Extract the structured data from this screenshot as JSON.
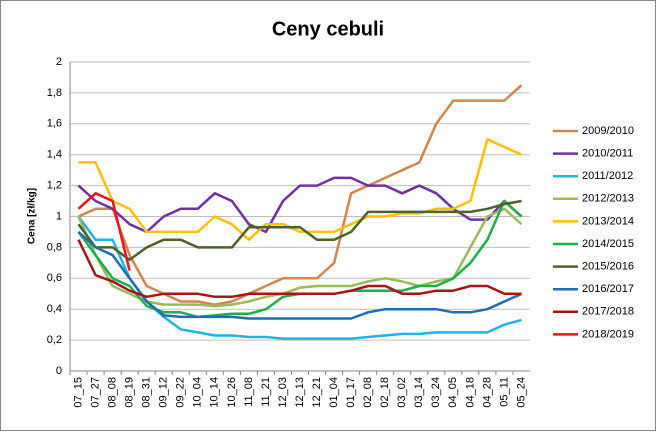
{
  "chart_data": {
    "type": "line",
    "title": "Ceny cebuli",
    "y_label": "Cena [zł/kg]",
    "categories": [
      "07_15",
      "07_27",
      "08_08",
      "08_19",
      "08_31",
      "09_12",
      "09_22",
      "10_04",
      "10_14",
      "10_26",
      "11_08",
      "11_21",
      "12_03",
      "12_13",
      "12_21",
      "01_04",
      "01_17",
      "02_08",
      "02_18",
      "03_02",
      "03_14",
      "03_24",
      "04_05",
      "04_18",
      "04_28",
      "05_11",
      "05_24"
    ],
    "ylim": [
      0,
      2
    ],
    "yticks": [
      0,
      {
        "value": 0.2,
        "label": "0,2"
      },
      {
        "value": 0.4,
        "label": "0,4"
      },
      {
        "value": 0.6,
        "label": "0,6"
      },
      {
        "value": 0.8,
        "label": "0,8"
      },
      1,
      {
        "value": 1.2,
        "label": "1,2"
      },
      {
        "value": 1.4,
        "label": "1,4"
      },
      {
        "value": 1.6,
        "label": "1,6"
      },
      {
        "value": 1.8,
        "label": "1,8"
      },
      2
    ],
    "grid": true,
    "legend": "right",
    "series": [
      {
        "name": "2009/2010",
        "color": "#d0874e",
        "values": [
          1.0,
          1.05,
          1.05,
          0.75,
          0.55,
          0.5,
          0.45,
          0.45,
          0.43,
          0.45,
          0.5,
          0.55,
          0.6,
          0.6,
          0.6,
          0.7,
          1.15,
          1.2,
          1.25,
          1.3,
          1.35,
          1.6,
          1.75,
          1.75,
          1.75,
          1.75,
          1.85
        ]
      },
      {
        "name": "2010/2011",
        "color": "#7030a0",
        "values": [
          1.2,
          1.1,
          1.05,
          0.95,
          0.9,
          1.0,
          1.05,
          1.05,
          1.15,
          1.1,
          0.95,
          0.9,
          1.1,
          1.2,
          1.2,
          1.25,
          1.25,
          1.2,
          1.2,
          1.15,
          1.2,
          1.15,
          1.05,
          0.98,
          0.98,
          1.1,
          1.0
        ]
      },
      {
        "name": "2011/2012",
        "color": "#1fb4e6",
        "values": [
          1.0,
          0.85,
          0.85,
          0.6,
          0.45,
          0.35,
          0.27,
          0.25,
          0.23,
          0.23,
          0.22,
          0.22,
          0.21,
          0.21,
          0.21,
          0.21,
          0.21,
          0.22,
          0.23,
          0.24,
          0.24,
          0.25,
          0.25,
          0.25,
          0.25,
          0.3,
          0.33
        ]
      },
      {
        "name": "2012/2013",
        "color": "#9bbb59",
        "values": [
          1.0,
          0.75,
          0.55,
          0.5,
          0.45,
          0.43,
          0.43,
          0.43,
          0.42,
          0.43,
          0.45,
          0.48,
          0.5,
          0.54,
          0.55,
          0.55,
          0.55,
          0.58,
          0.6,
          0.58,
          0.55,
          0.58,
          0.6,
          0.8,
          1.0,
          1.05,
          0.95
        ]
      },
      {
        "name": "2013/2014",
        "color": "#ffc000",
        "values": [
          1.35,
          1.35,
          1.1,
          1.05,
          0.9,
          0.9,
          0.9,
          0.9,
          1.0,
          0.95,
          0.85,
          0.95,
          0.95,
          0.9,
          0.9,
          0.9,
          0.95,
          1.0,
          1.0,
          1.02,
          1.02,
          1.05,
          1.05,
          1.1,
          1.5,
          1.45,
          1.4
        ]
      },
      {
        "name": "2014/2015",
        "color": "#1fae4c",
        "values": [
          0.9,
          0.75,
          0.6,
          0.55,
          0.42,
          0.38,
          0.38,
          0.35,
          0.36,
          0.37,
          0.37,
          0.4,
          0.48,
          0.5,
          0.5,
          0.5,
          0.52,
          0.52,
          0.52,
          0.52,
          0.55,
          0.55,
          0.6,
          0.7,
          0.85,
          1.1,
          1.0
        ]
      },
      {
        "name": "2015/2016",
        "color": "#4f6228",
        "values": [
          0.95,
          0.8,
          0.8,
          0.72,
          0.8,
          0.85,
          0.85,
          0.8,
          0.8,
          0.8,
          0.93,
          0.93,
          0.93,
          0.93,
          0.85,
          0.85,
          0.9,
          1.03,
          1.03,
          1.03,
          1.03,
          1.03,
          1.03,
          1.03,
          1.05,
          1.08,
          1.1
        ]
      },
      {
        "name": "2016/2017",
        "color": "#1f6eb4",
        "values": [
          0.9,
          0.8,
          0.75,
          0.6,
          0.45,
          0.36,
          0.35,
          0.35,
          0.35,
          0.35,
          0.34,
          0.34,
          0.34,
          0.34,
          0.34,
          0.34,
          0.34,
          0.38,
          0.4,
          0.4,
          0.4,
          0.4,
          0.38,
          0.38,
          0.4,
          0.45,
          0.5
        ]
      },
      {
        "name": "2017/2018",
        "color": "#a01818",
        "values": [
          0.85,
          0.62,
          0.58,
          0.52,
          0.48,
          0.5,
          0.5,
          0.5,
          0.48,
          0.48,
          0.5,
          0.5,
          0.5,
          0.5,
          0.5,
          0.5,
          0.52,
          0.55,
          0.55,
          0.5,
          0.5,
          0.52,
          0.52,
          0.55,
          0.55,
          0.5,
          0.5
        ]
      },
      {
        "name": "2018/2019",
        "color": "#e8141e",
        "values": [
          1.05,
          1.15,
          1.1,
          0.65,
          null,
          null,
          null,
          null,
          null,
          null,
          null,
          null,
          null,
          null,
          null,
          null,
          null,
          null,
          null,
          null,
          null,
          null,
          null,
          null,
          null,
          null,
          null
        ]
      }
    ]
  }
}
